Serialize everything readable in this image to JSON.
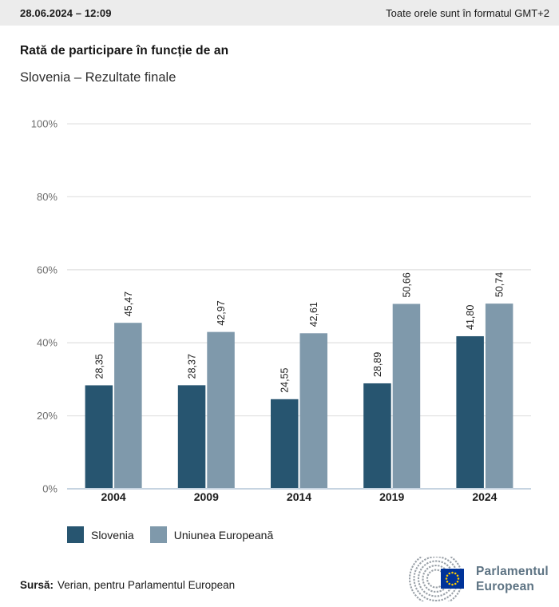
{
  "header": {
    "date_time": "28.06.2024 – 12:09",
    "timezone_note": "Toate orele sunt în formatul GMT+2"
  },
  "title": "Rată de participare în funcție de an",
  "subtitle": "Slovenia – Rezultate finale",
  "chart_data": {
    "type": "bar",
    "title": "Rată de participare în funcție de an",
    "subtitle": "Slovenia – Rezultate finale",
    "categories": [
      "2004",
      "2009",
      "2014",
      "2019",
      "2024"
    ],
    "series": [
      {
        "name": "Slovenia",
        "color": "#275570",
        "values": [
          28.35,
          28.37,
          24.55,
          28.89,
          41.8
        ]
      },
      {
        "name": "Uniunea Europeană",
        "color": "#7f99ab",
        "values": [
          45.47,
          42.97,
          42.61,
          50.66,
          50.74
        ]
      }
    ],
    "value_labels": {
      "decimal_separator": ",",
      "rotation_degrees": -90
    },
    "xlabel": "",
    "ylabel": "",
    "ylim": [
      0,
      100
    ],
    "yticks": [
      0,
      20,
      40,
      60,
      80,
      100
    ],
    "ytick_suffix": "%",
    "grid": true,
    "legend_position": "bottom"
  },
  "ui_colors": {
    "header_bg": "#ececec",
    "gridline": "#e3e3e3",
    "zero_axis": "#c6d4e1",
    "ytick_label": "#6e6e6e",
    "xtick_label": "#1b1b1b",
    "value_label": "#1f1f1f",
    "logo_text": "#5d7383",
    "eu_flag_blue": "#003399",
    "eu_star_yellow": "#ffcc00",
    "hemicycle_gray": "#9aa1a8"
  },
  "footer": {
    "source_label": "Sursă:",
    "source_text": "Verian, pentru Parlamentul European"
  },
  "logo": {
    "line1": "Parlamentul",
    "line2": "European"
  }
}
